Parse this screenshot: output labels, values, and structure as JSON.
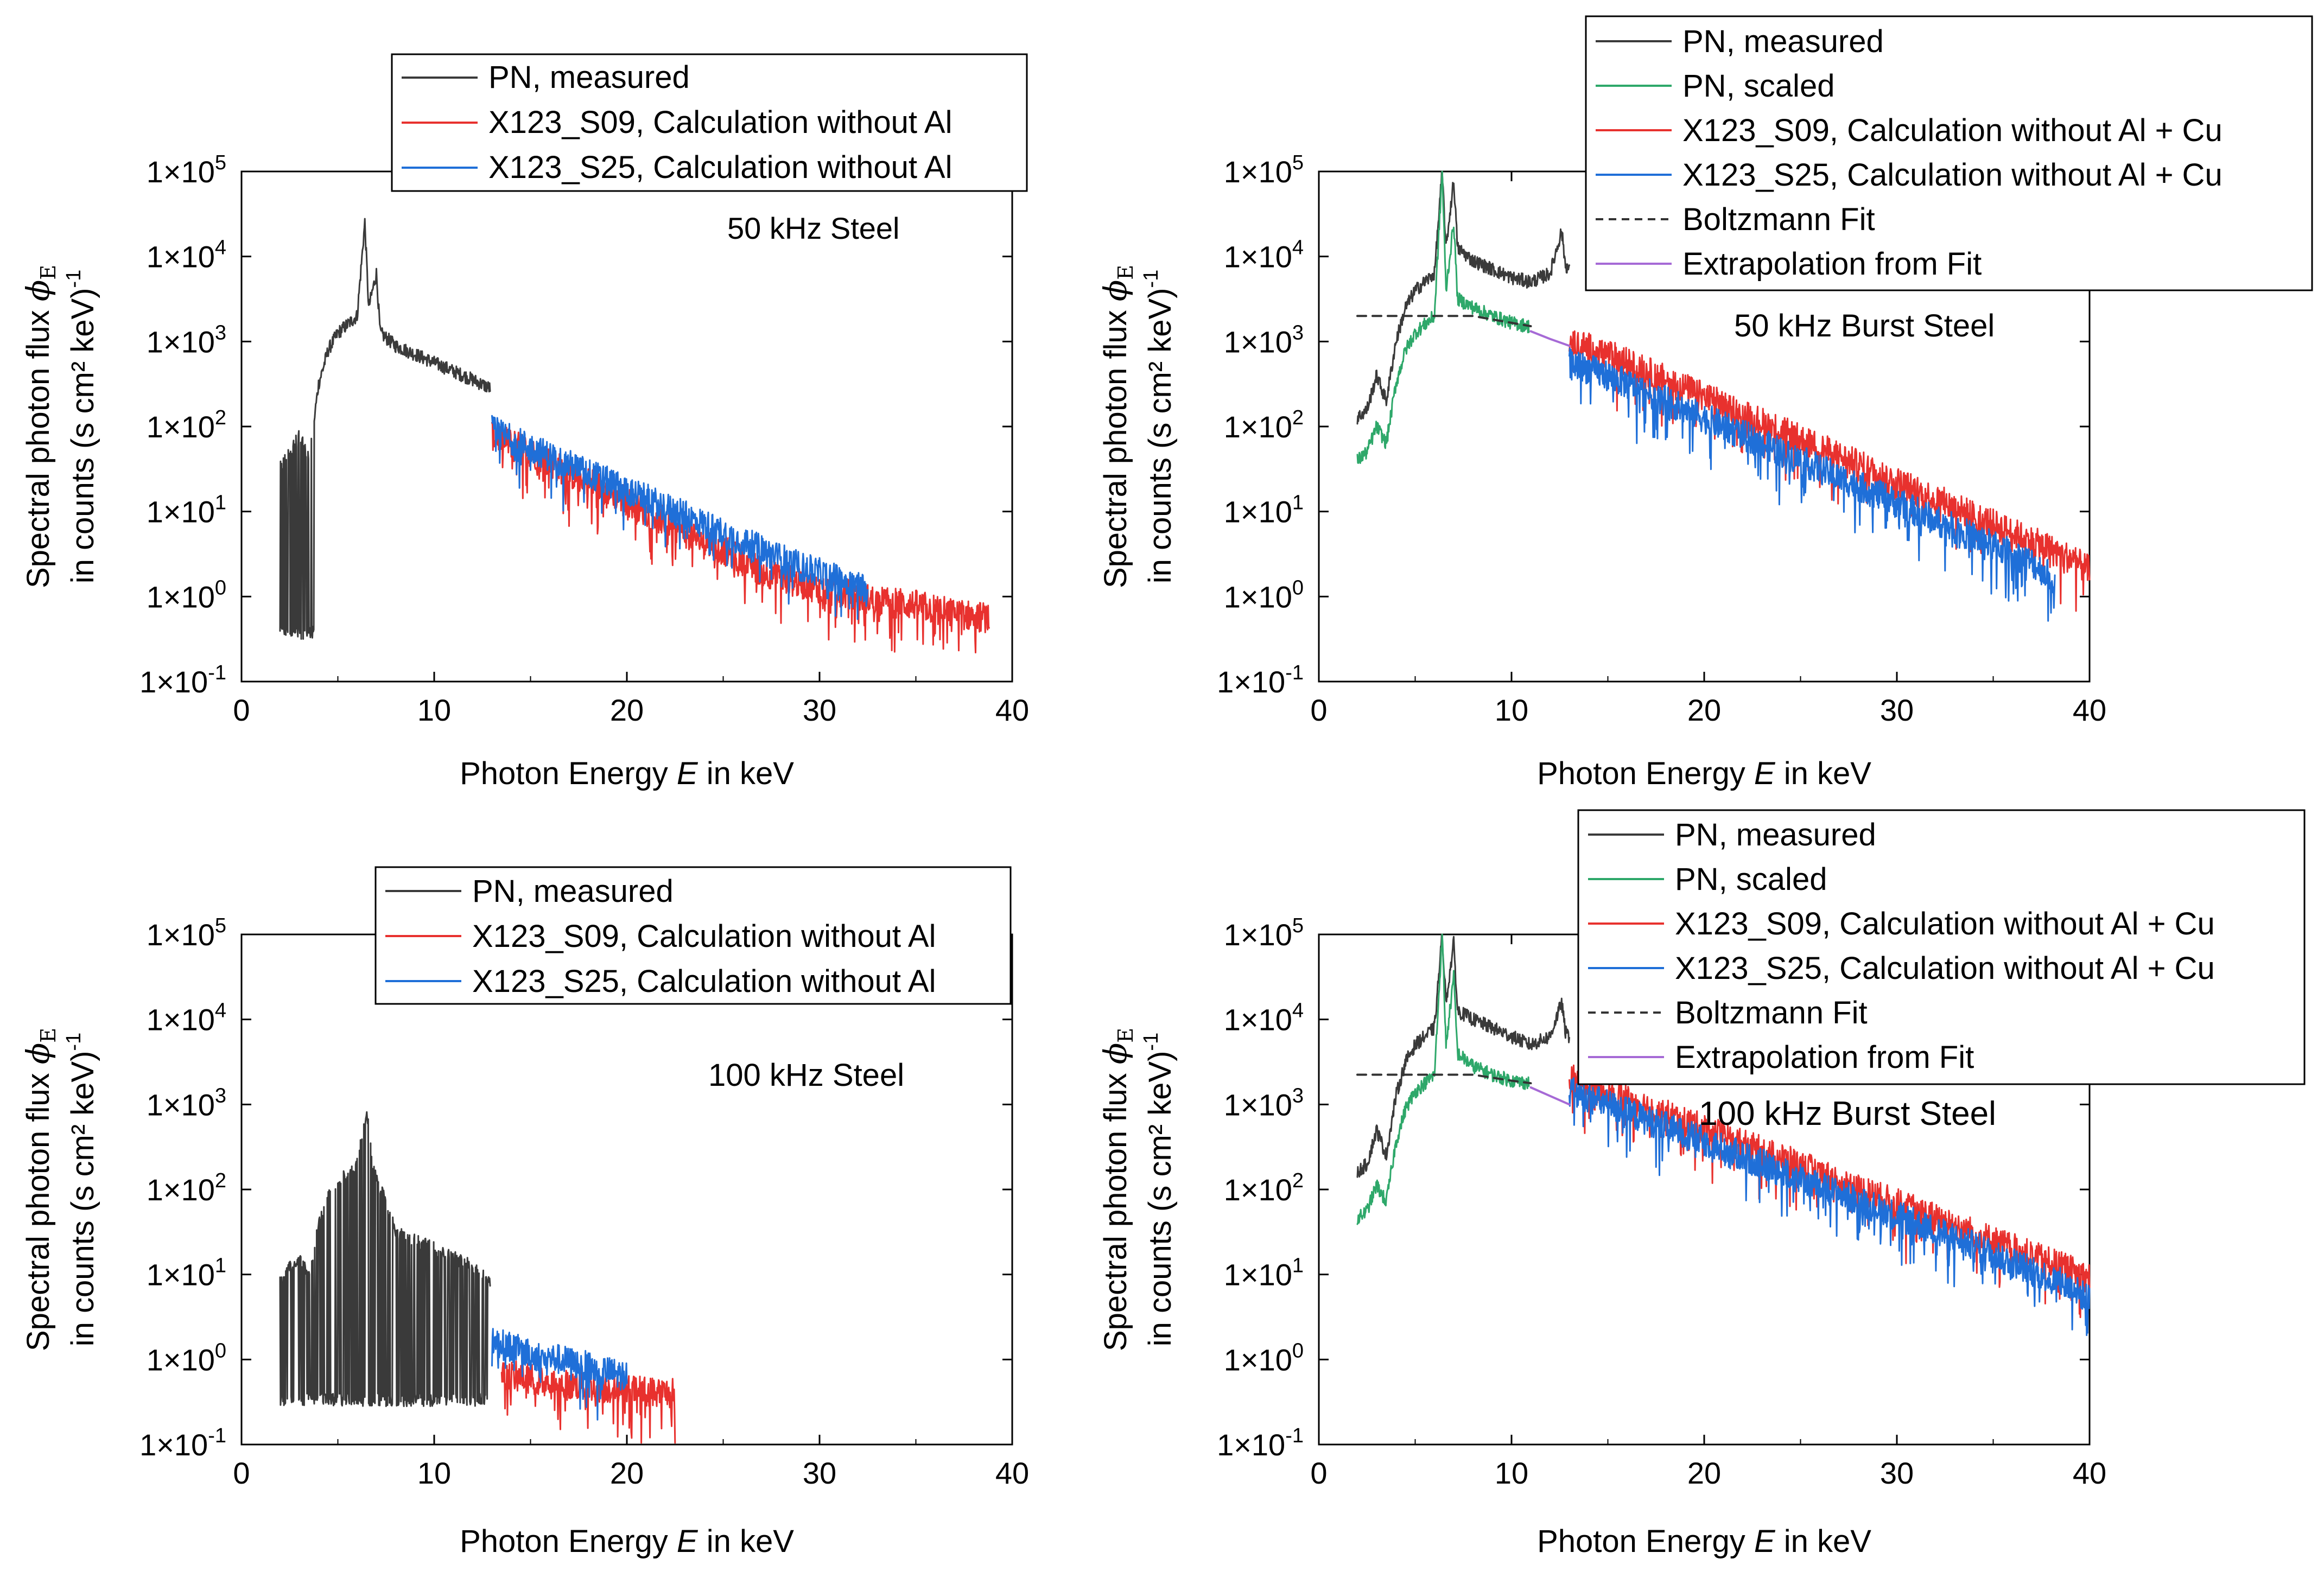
{
  "figure": {
    "description_free": true
  },
  "colors": {
    "measured": "#3a3a3a",
    "scaled": "#2ea86a",
    "s09": "#e8312e",
    "s25": "#1f6fd8",
    "fit": "#333333",
    "extrap": "#a66ad6"
  },
  "chart_data": [
    {
      "type": "line",
      "title": "50 kHz Steel",
      "xlabel_prefix": "Photon Energy ",
      "xlabel_var": "E",
      "xlabel_suffix": " in keV",
      "ylabel_line1": "Spectral photon flux ",
      "ylabel_var": "ϕ",
      "ylabel_sub": "E",
      "ylabel_line2": "in counts (s cm² keV)",
      "ylabel_exp": "-1",
      "xlim": [
        0,
        40
      ],
      "ylim_log10": [
        -1,
        5
      ],
      "x_ticks": [
        0,
        10,
        20,
        30,
        40
      ],
      "y_tick_labels": [
        "1×10-1",
        "1×100",
        "1×101",
        "1×102",
        "1×103",
        "1×104",
        "1×105"
      ],
      "y_tick_base": "1×10",
      "y_tick_exps": [
        "-1",
        "0",
        "1",
        "2",
        "3",
        "4",
        "5"
      ],
      "legend": [
        "PN, measured",
        "X123_S09, Calculation without Al",
        "X123_S25, Calculation without Al"
      ],
      "series": [
        {
          "name": "PN, measured",
          "color_key": "measured",
          "x": [
            2.0,
            2.5,
            3.0,
            3.5,
            4.0,
            4.5,
            5.0,
            5.5,
            6.0,
            6.4,
            6.6,
            7.0,
            7.2,
            8.0,
            9.0,
            10.0,
            11.0,
            12.0,
            12.9
          ],
          "y_log10": [
            1.5,
            1.7,
            1.9,
            1.6,
            2.5,
            2.9,
            3.1,
            3.2,
            3.3,
            4.4,
            3.4,
            3.8,
            3.1,
            2.95,
            2.85,
            2.75,
            2.65,
            2.55,
            2.45
          ],
          "noise_low_below_x": 3.8,
          "noise_low_log10": -0.5
        },
        {
          "name": "X123_S09, Calculation without Al",
          "color_key": "s09",
          "x": [
            13,
            15,
            17,
            19,
            21,
            23,
            25,
            27,
            29,
            31,
            33,
            35,
            37,
            38.8
          ],
          "y_log10": [
            1.9,
            1.7,
            1.45,
            1.25,
            1.0,
            0.75,
            0.55,
            0.3,
            0.15,
            0.05,
            -0.05,
            -0.1,
            -0.2,
            -0.25
          ]
        },
        {
          "name": "X123_S25, Calculation without Al",
          "color_key": "s25",
          "x": [
            13,
            15,
            17,
            19,
            21,
            23,
            25,
            27,
            29,
            31,
            32.5
          ],
          "y_log10": [
            1.95,
            1.75,
            1.55,
            1.35,
            1.15,
            0.95,
            0.75,
            0.55,
            0.35,
            0.2,
            0.1
          ]
        }
      ]
    },
    {
      "type": "line",
      "title": "50 kHz Burst Steel",
      "xlabel_prefix": "Photon Energy ",
      "xlabel_var": "E",
      "xlabel_suffix": " in keV",
      "ylabel_line1": "Spectral photon flux ",
      "ylabel_var": "ϕ",
      "ylabel_sub": "E",
      "ylabel_line2": "in counts (s cm² keV)",
      "ylabel_exp": "-1",
      "xlim": [
        0,
        40
      ],
      "ylim_log10": [
        -1,
        5
      ],
      "x_ticks": [
        0,
        10,
        20,
        30,
        40
      ],
      "y_tick_labels": [
        "1×10-1",
        "1×100",
        "1×101",
        "1×102",
        "1×103",
        "1×104",
        "1×105"
      ],
      "y_tick_base": "1×10",
      "y_tick_exps": [
        "-1",
        "0",
        "1",
        "2",
        "3",
        "4",
        "5"
      ],
      "legend": [
        "PN, measured",
        "PN, scaled",
        "X123_S09, Calculation without Al + Cu",
        "X123_S25, Calculation without Al + Cu",
        "Boltzmann Fit",
        "Extrapolation from Fit"
      ],
      "series": [
        {
          "name": "PN, measured",
          "color_key": "measured",
          "x": [
            2.0,
            2.5,
            3.0,
            3.5,
            4.0,
            4.5,
            5.0,
            5.5,
            6.0,
            6.4,
            6.6,
            7.0,
            7.2,
            8.0,
            9.0,
            10.0,
            11.0,
            12.0,
            12.6,
            12.8,
            13.0
          ],
          "y_log10": [
            2.1,
            2.2,
            2.6,
            2.3,
            3.0,
            3.4,
            3.6,
            3.7,
            3.8,
            5.0,
            4.1,
            4.9,
            4.1,
            3.95,
            3.85,
            3.75,
            3.7,
            3.8,
            4.3,
            3.9,
            3.85
          ]
        },
        {
          "name": "PN, scaled",
          "color_key": "scaled",
          "x": [
            2.0,
            2.5,
            3.0,
            3.5,
            4.0,
            4.5,
            5.0,
            5.5,
            6.0,
            6.4,
            6.6,
            7.0,
            7.2,
            8.0,
            9.0,
            10.0,
            10.9
          ],
          "y_log10": [
            1.6,
            1.7,
            2.0,
            1.8,
            2.5,
            2.9,
            3.1,
            3.2,
            3.3,
            5.0,
            3.6,
            4.4,
            3.5,
            3.4,
            3.3,
            3.22,
            3.18
          ]
        },
        {
          "name": "X123_S09, Calculation without Al + Cu",
          "color_key": "s09",
          "x": [
            13,
            15,
            17,
            19,
            21,
            23,
            25,
            27,
            29,
            31,
            33,
            35,
            37,
            39,
            40
          ],
          "y_log10": [
            3.0,
            2.85,
            2.65,
            2.45,
            2.25,
            2.05,
            1.85,
            1.65,
            1.45,
            1.25,
            1.05,
            0.85,
            0.65,
            0.45,
            0.3
          ]
        },
        {
          "name": "X123_S25, Calculation without Al + Cu",
          "color_key": "s25",
          "x": [
            13,
            15,
            17,
            19,
            21,
            23,
            25,
            27,
            29,
            31,
            33,
            35,
            37,
            38.2
          ],
          "y_log10": [
            2.75,
            2.6,
            2.4,
            2.2,
            2.0,
            1.8,
            1.6,
            1.4,
            1.2,
            1.0,
            0.8,
            0.6,
            0.4,
            0.2
          ]
        },
        {
          "name": "Boltzmann Fit",
          "color_key": "fit",
          "x": [
            2.0,
            4.0,
            6.0,
            8.0,
            10.0,
            11.0
          ],
          "y_log10": [
            3.3,
            3.3,
            3.3,
            3.3,
            3.22,
            3.18
          ],
          "dashed": true
        },
        {
          "name": "Extrapolation from Fit",
          "color_key": "extrap",
          "x": [
            11.0,
            12.0,
            13.0
          ],
          "y_log10": [
            3.12,
            3.03,
            2.95
          ]
        }
      ]
    },
    {
      "type": "line",
      "title": "100 kHz Steel",
      "xlabel_prefix": "Photon Energy ",
      "xlabel_var": "E",
      "xlabel_suffix": " in keV",
      "ylabel_line1": "Spectral photon flux ",
      "ylabel_var": "ϕ",
      "ylabel_sub": "E",
      "ylabel_line2": "in counts (s cm² keV)",
      "ylabel_exp": "-1",
      "xlim": [
        0,
        40
      ],
      "ylim_log10": [
        -1,
        5
      ],
      "x_ticks": [
        0,
        10,
        20,
        30,
        40
      ],
      "y_tick_labels": [
        "1×10-1",
        "1×100",
        "1×101",
        "1×102",
        "1×103",
        "1×104",
        "1×105"
      ],
      "y_tick_base": "1×10",
      "y_tick_exps": [
        "-1",
        "0",
        "1",
        "2",
        "3",
        "4",
        "5"
      ],
      "legend": [
        "PN, measured",
        "X123_S09, Calculation without Al",
        "X123_S25, Calculation without Al"
      ],
      "series": [
        {
          "name": "PN, measured",
          "color_key": "measured",
          "x": [
            2.0,
            2.5,
            3.0,
            3.5,
            4.0,
            4.5,
            5.0,
            5.5,
            6.0,
            6.5,
            6.8,
            7.0,
            7.5,
            8.0,
            9.0,
            10.0,
            11.0,
            12.0,
            12.9
          ],
          "y_log10": [
            0.9,
            1.1,
            1.2,
            1.0,
            1.6,
            1.9,
            2.1,
            2.2,
            2.3,
            2.95,
            2.3,
            2.1,
            1.9,
            1.5,
            1.4,
            1.3,
            1.2,
            1.1,
            0.9
          ],
          "noise_low_below_x": 12.9,
          "noise_low_log10": -0.55
        },
        {
          "name": "X123_S09, Calculation without Al",
          "color_key": "s09",
          "x": [
            13.5,
            14.5,
            15.5,
            16.5,
            17.5,
            19.5,
            22.5
          ],
          "y_log10": [
            -0.2,
            -0.2,
            -0.25,
            -0.3,
            -0.3,
            -0.35,
            -0.4
          ]
        },
        {
          "name": "X123_S25, Calculation without Al",
          "color_key": "s25",
          "x": [
            13.0,
            14.0,
            15.0,
            16.5,
            20.0
          ],
          "y_log10": [
            0.2,
            0.15,
            0.05,
            0.0,
            -0.2
          ]
        }
      ]
    },
    {
      "type": "line",
      "title": "100 kHz Burst Steel",
      "xlabel_prefix": "Photon Energy ",
      "xlabel_var": "E",
      "xlabel_suffix": " in keV",
      "ylabel_line1": "Spectral photon flux ",
      "ylabel_var": "ϕ",
      "ylabel_sub": "E",
      "ylabel_line2": "in counts (s cm² keV)",
      "ylabel_exp": "-1",
      "xlim": [
        0,
        40
      ],
      "ylim_log10": [
        -1,
        5
      ],
      "x_ticks": [
        0,
        10,
        20,
        30,
        40
      ],
      "y_tick_labels": [
        "1×10-1",
        "1×100",
        "1×101",
        "1×102",
        "1×103",
        "1×104",
        "1×105"
      ],
      "y_tick_base": "1×10",
      "y_tick_exps": [
        "-1",
        "0",
        "1",
        "2",
        "3",
        "4",
        "5"
      ],
      "legend": [
        "PN, measured",
        "PN, scaled",
        "X123_S09, Calculation without Al + Cu",
        "X123_S25, Calculation without Al + Cu",
        "Boltzmann Fit",
        "Extrapolation from Fit"
      ],
      "series": [
        {
          "name": "PN, measured",
          "color_key": "measured",
          "x": [
            2.0,
            2.5,
            3.0,
            3.5,
            4.0,
            4.5,
            5.0,
            5.5,
            6.0,
            6.4,
            6.6,
            7.0,
            7.2,
            8.0,
            9.0,
            10.0,
            11.0,
            12.0,
            12.6,
            12.8,
            13.0
          ],
          "y_log10": [
            2.2,
            2.3,
            2.7,
            2.4,
            3.1,
            3.5,
            3.7,
            3.8,
            3.9,
            5.0,
            4.2,
            4.9,
            4.1,
            4.0,
            3.9,
            3.8,
            3.7,
            3.8,
            4.2,
            3.85,
            3.8
          ]
        },
        {
          "name": "PN, scaled",
          "color_key": "scaled",
          "x": [
            2.0,
            2.5,
            3.0,
            3.5,
            4.0,
            4.5,
            5.0,
            5.5,
            6.0,
            6.4,
            6.6,
            7.0,
            7.2,
            8.0,
            9.0,
            10.0,
            10.9
          ],
          "y_log10": [
            1.65,
            1.75,
            2.05,
            1.85,
            2.55,
            2.95,
            3.15,
            3.25,
            3.35,
            5.0,
            3.7,
            4.5,
            3.6,
            3.45,
            3.35,
            3.28,
            3.25
          ]
        },
        {
          "name": "X123_S09, Calculation without Al + Cu",
          "color_key": "s09",
          "x": [
            13,
            15,
            17,
            19,
            21,
            23,
            25,
            27,
            29,
            31,
            33,
            35,
            37,
            39,
            40
          ],
          "y_log10": [
            3.3,
            3.15,
            2.98,
            2.8,
            2.62,
            2.45,
            2.28,
            2.1,
            1.92,
            1.75,
            1.58,
            1.4,
            1.22,
            1.05,
            0.95
          ]
        },
        {
          "name": "X123_S25, Calculation without Al + Cu",
          "color_key": "s25",
          "x": [
            13,
            15,
            17,
            19,
            21,
            23,
            25,
            27,
            29,
            31,
            33,
            35,
            37,
            39,
            40
          ],
          "y_log10": [
            3.15,
            3.0,
            2.82,
            2.65,
            2.48,
            2.3,
            2.12,
            1.95,
            1.78,
            1.6,
            1.42,
            1.25,
            1.05,
            0.85,
            0.7
          ]
        },
        {
          "name": "Boltzmann Fit",
          "color_key": "fit",
          "x": [
            2.0,
            4.0,
            6.0,
            8.0,
            10.0,
            11.0
          ],
          "y_log10": [
            3.35,
            3.35,
            3.35,
            3.35,
            3.28,
            3.25
          ],
          "dashed": true
        },
        {
          "name": "Extrapolation from Fit",
          "color_key": "extrap",
          "x": [
            11.0,
            12.0,
            13.0
          ],
          "y_log10": [
            3.2,
            3.1,
            3.0
          ]
        }
      ]
    }
  ]
}
